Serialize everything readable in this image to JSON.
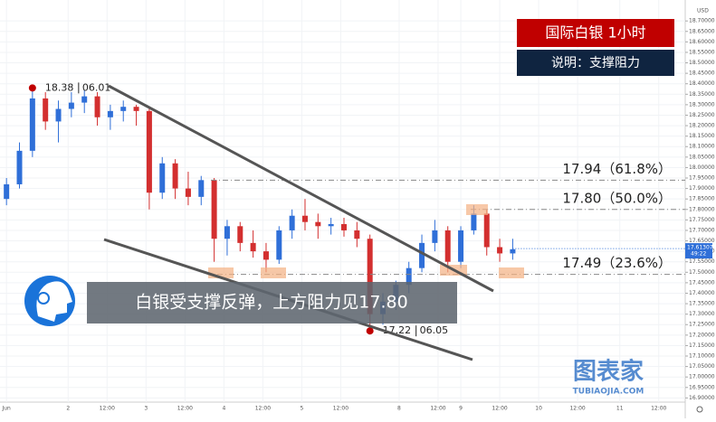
{
  "chart_data": {
    "type": "candlestick",
    "title": "国际白银  1小时",
    "subtitle": "说明：支撑阻力",
    "annotation": "白银受支撑反弹，上方阻力见17.80",
    "currency": "USD",
    "last_price": {
      "value": 17.61307,
      "label": "17.61307"
    },
    "countdown": "49:22",
    "watermark": "图表家",
    "watermark_url": "TUBIAOJIA.COM",
    "up_color": "#2f6fd8",
    "down_color": "#d32f2f",
    "grid": true,
    "ylim": [
      16.88,
      18.8
    ],
    "yticks": [
      {
        "value": 16.9,
        "label": "16.90000"
      },
      {
        "value": 16.95,
        "label": "16.95000"
      },
      {
        "value": 17.0,
        "label": "17.00000"
      },
      {
        "value": 17.05,
        "label": "17.05000"
      },
      {
        "value": 17.1,
        "label": "17.10000"
      },
      {
        "value": 17.15,
        "label": "17.15000"
      },
      {
        "value": 17.2,
        "label": "17.20000"
      },
      {
        "value": 17.25,
        "label": "17.25000"
      },
      {
        "value": 17.3,
        "label": "17.30000"
      },
      {
        "value": 17.35,
        "label": "17.35000"
      },
      {
        "value": 17.4,
        "label": "17.40000"
      },
      {
        "value": 17.45,
        "label": "17.45000"
      },
      {
        "value": 17.5,
        "label": "17.50000"
      },
      {
        "value": 17.55,
        "label": "17.55000"
      },
      {
        "value": 17.6,
        "label": "17.60000"
      },
      {
        "value": 17.65,
        "label": "17.65000"
      },
      {
        "value": 17.7,
        "label": "17.70000"
      },
      {
        "value": 17.75,
        "label": "17.75000"
      },
      {
        "value": 17.8,
        "label": "17.80000"
      },
      {
        "value": 17.85,
        "label": "17.85000"
      },
      {
        "value": 17.9,
        "label": "17.90000"
      },
      {
        "value": 17.95,
        "label": "17.95000"
      },
      {
        "value": 18.0,
        "label": "18.00000"
      },
      {
        "value": 18.05,
        "label": "18.05000"
      },
      {
        "value": 18.1,
        "label": "18.10000"
      },
      {
        "value": 18.15,
        "label": "18.15000"
      },
      {
        "value": 18.2,
        "label": "18.20000"
      },
      {
        "value": 18.25,
        "label": "18.25000"
      },
      {
        "value": 18.3,
        "label": "18.30000"
      },
      {
        "value": 18.35,
        "label": "18.35000"
      },
      {
        "value": 18.4,
        "label": "18.40000"
      },
      {
        "value": 18.45,
        "label": "18.45000"
      },
      {
        "value": 18.5,
        "label": "18.50000"
      },
      {
        "value": 18.55,
        "label": "18.55000"
      },
      {
        "value": 18.6,
        "label": "18.60000"
      },
      {
        "value": 18.65,
        "label": "18.65000"
      },
      {
        "value": 18.7,
        "label": "18.70000"
      }
    ],
    "xlim": [
      0,
      212
    ],
    "xticks": [
      {
        "value": 2,
        "label": "Jun"
      },
      {
        "value": 21,
        "label": "2"
      },
      {
        "value": 33,
        "label": "12:00"
      },
      {
        "value": 45,
        "label": "3"
      },
      {
        "value": 57,
        "label": "12:00"
      },
      {
        "value": 69,
        "label": "4"
      },
      {
        "value": 81,
        "label": "12:00"
      },
      {
        "value": 93,
        "label": "5"
      },
      {
        "value": 105,
        "label": "12:00"
      },
      {
        "value": 123,
        "label": "8"
      },
      {
        "value": 135,
        "label": "12:00"
      },
      {
        "value": 142,
        "label": "9"
      },
      {
        "value": 154,
        "label": "12:00"
      },
      {
        "value": 166,
        "label": "10"
      },
      {
        "value": 178,
        "label": "12:00"
      },
      {
        "value": 191,
        "label": "11"
      },
      {
        "value": 203,
        "label": "12:00"
      }
    ],
    "x": [
      2,
      6,
      10,
      14,
      18,
      22,
      26,
      30,
      34,
      38,
      42,
      46,
      50,
      54,
      58,
      62,
      66,
      70,
      74,
      78,
      82,
      86,
      90,
      94,
      98,
      102,
      106,
      110,
      114,
      118,
      122,
      126,
      130,
      134,
      138,
      142,
      146,
      150,
      154,
      158
    ],
    "open": [
      17.85,
      17.92,
      18.08,
      18.33,
      18.22,
      18.28,
      18.31,
      18.34,
      18.24,
      18.27,
      18.29,
      18.27,
      17.88,
      18.02,
      17.9,
      17.86,
      17.94,
      17.66,
      17.72,
      17.64,
      17.6,
      17.56,
      17.7,
      17.77,
      17.74,
      17.72,
      17.73,
      17.7,
      17.66,
      17.3,
      17.36,
      17.44,
      17.52,
      17.64,
      17.7,
      17.55,
      17.7,
      17.78,
      17.62,
      17.59
    ],
    "high": [
      17.95,
      18.12,
      18.38,
      18.36,
      18.32,
      18.36,
      18.37,
      18.36,
      18.3,
      18.32,
      18.3,
      18.28,
      18.05,
      18.04,
      17.98,
      17.96,
      17.95,
      17.75,
      17.74,
      17.7,
      17.64,
      17.72,
      17.8,
      17.85,
      17.78,
      17.76,
      17.76,
      17.74,
      17.68,
      17.4,
      17.46,
      17.55,
      17.68,
      17.75,
      17.72,
      17.72,
      17.82,
      17.8,
      17.66,
      17.66
    ],
    "low": [
      17.82,
      17.9,
      18.05,
      18.18,
      18.12,
      18.24,
      18.26,
      18.2,
      18.18,
      18.22,
      18.2,
      17.8,
      17.85,
      17.85,
      17.82,
      17.82,
      17.55,
      17.58,
      17.6,
      17.57,
      17.5,
      17.54,
      17.66,
      17.7,
      17.66,
      17.68,
      17.67,
      17.62,
      17.22,
      17.25,
      17.32,
      17.4,
      17.5,
      17.6,
      17.5,
      17.52,
      17.68,
      17.58,
      17.55,
      17.56
    ],
    "close": [
      17.92,
      18.08,
      18.33,
      18.22,
      18.28,
      18.31,
      18.34,
      18.24,
      18.27,
      18.29,
      18.27,
      17.88,
      18.02,
      17.9,
      17.86,
      17.94,
      17.66,
      17.72,
      17.64,
      17.6,
      17.56,
      17.7,
      17.77,
      17.74,
      17.72,
      17.73,
      17.7,
      17.66,
      17.3,
      17.36,
      17.44,
      17.52,
      17.64,
      17.7,
      17.55,
      17.7,
      17.78,
      17.62,
      17.59,
      17.61
    ],
    "levels": [
      {
        "value": 17.94,
        "label": "17.94（61.8%）"
      },
      {
        "value": 17.8,
        "label": "17.80（50.0%）"
      },
      {
        "value": 17.49,
        "label": "17.49（23.6%）"
      }
    ],
    "extremes": [
      {
        "x": 10,
        "value": 18.38,
        "label": "18.38",
        "date": "06.01"
      },
      {
        "x": 114,
        "value": 17.22,
        "label": "17.22",
        "date": "06.05"
      }
    ]
  }
}
